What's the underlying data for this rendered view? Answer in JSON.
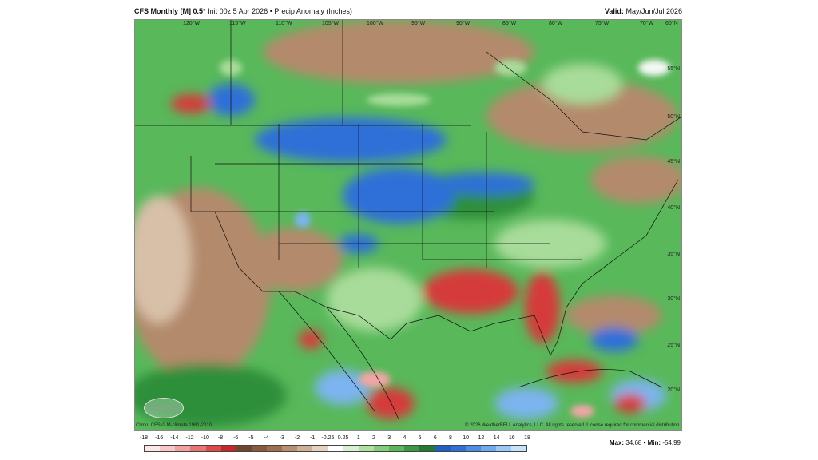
{
  "header": {
    "model": "CFS Monthly [M] 0.5°",
    "init": "Init 00z 5 Apr 2026",
    "separator": "•",
    "field": "Precip Anomaly (Inches)",
    "valid_label": "Valid:",
    "valid_value": "May/Jun/Jul 2026"
  },
  "map": {
    "lon_labels": [
      "120°W",
      "115°W",
      "110°W",
      "105°W",
      "100°W",
      "95°W",
      "90°W",
      "85°W",
      "80°W",
      "75°W",
      "70°W",
      "60°N"
    ],
    "lat_labels": [
      "55°N",
      "50°N",
      "45°N",
      "40°N",
      "35°N",
      "30°N",
      "25°N",
      "20°N"
    ],
    "logo_text": "WeatherBELL",
    "colors": {
      "brown_dark": "#8a5a3a",
      "brown": "#b48a6c",
      "tan": "#d8c0a8",
      "green_light": "#a8dc9a",
      "green": "#58b85a",
      "green_dark": "#2f8f3a",
      "blue": "#2e6fd8",
      "blue_light": "#7cb4f0",
      "red": "#d63b3b",
      "red_light": "#f2a6a6",
      "white": "#f4f8f4"
    }
  },
  "credits": {
    "climo": "Climo: CFSv2 M-climate 1981-2010",
    "copyright": "© 2026 WeatherBELL Analytics, LLC. All rights reserved.  License required for commercial distribution."
  },
  "legend": {
    "ticks": [
      "-18",
      "-16",
      "-14",
      "-12",
      "-10",
      "-8",
      "-6",
      "-5",
      "-4",
      "-3",
      "-2",
      "-1",
      "-0.25",
      "0.25",
      "1",
      "2",
      "3",
      "4",
      "5",
      "6",
      "8",
      "10",
      "12",
      "14",
      "16",
      "18"
    ],
    "colors": [
      "#fde6e6",
      "#f9c6c6",
      "#f3a0a0",
      "#ea7474",
      "#de4a4a",
      "#c62828",
      "#6e4630",
      "#8a5a3a",
      "#a06e4c",
      "#b8906e",
      "#ceb094",
      "#e4d2c0",
      "#ffffff",
      "#d6f0d0",
      "#aee0a2",
      "#84cc7a",
      "#5cb65a",
      "#3a9a42",
      "#237a30",
      "#1d5fc2",
      "#2e6fd8",
      "#4a8ce6",
      "#6faaf0",
      "#98c8f6",
      "#c4e2fa"
    ]
  },
  "stats": {
    "max_label": "Max:",
    "max_value": "34.68",
    "min_label": "Min:",
    "min_value": "-54.99",
    "separator": "•"
  }
}
